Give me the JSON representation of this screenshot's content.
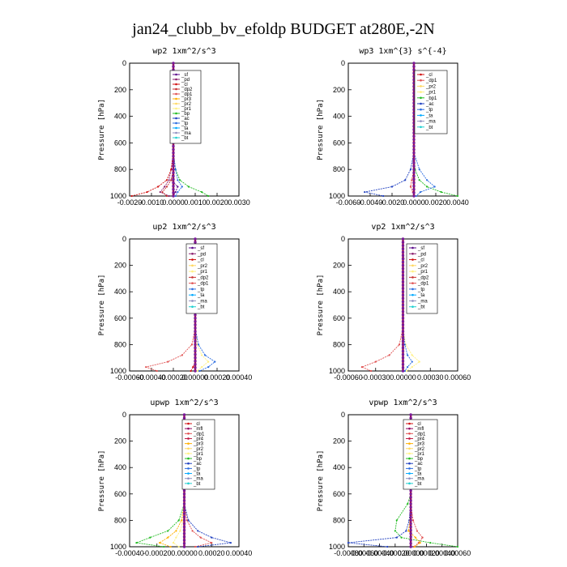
{
  "figure": {
    "title": "jan24_clubb_bv_efoldp  BUDGET at280E,-2N"
  },
  "colors": {
    "sf": "#5a0a8a",
    "pd": "#8a1e6e",
    "cl": "#d01010",
    "dp2": "#c83030",
    "dp1": "#e05050",
    "pr3": "#ffb000",
    "pr2": "#ffd860",
    "pr1": "#fff080",
    "pr4": "#c01840",
    "bp": "#22bb22",
    "ac": "#2040c0",
    "tp": "#2b6ce0",
    "ta": "#00aaff",
    "ma": "#9090c0",
    "bt": "#20d0d0",
    "mfl": "#900060"
  },
  "chart_data": [
    {
      "type": "line",
      "title": "wp2   1xm^2/s^3",
      "xlabel": "",
      "ylabel": "Pressure [hPa]",
      "xlim": [
        -0.002,
        0.003
      ],
      "ylim": [
        1000,
        0
      ],
      "xticks": [
        "-0.0020",
        "-0.0010",
        "0.0000",
        "0.0010",
        "0.0020",
        "0.0030"
      ],
      "yticks": [
        "0",
        "200",
        "400",
        "600",
        "800",
        "1000"
      ],
      "legend": [
        "_sf",
        "_pd",
        "_cl",
        "_dp2",
        "_dp1",
        "_pr3",
        "_pr2",
        "_pr1",
        "_bp",
        "_ac",
        "_tp",
        "_ta",
        "_ma",
        "_bt"
      ],
      "series": [
        {
          "name": "_sf",
          "values": [
            0,
            0,
            0,
            0,
            0,
            0,
            0,
            0,
            0,
            0,
            0,
            -0.0001,
            0.0002,
            0.0001,
            0
          ]
        },
        {
          "name": "_pd",
          "values": [
            0,
            0,
            0,
            0,
            0,
            0,
            0,
            0,
            0,
            0,
            -0.0001,
            -0.0002,
            -0.0004,
            -0.0006,
            -0.0002
          ]
        },
        {
          "name": "_cl",
          "values": [
            0,
            0,
            0,
            0,
            0,
            0,
            0,
            0,
            0,
            0,
            -0.0001,
            -0.0003,
            -0.0007,
            -0.0012,
            -0.0019
          ]
        },
        {
          "name": "_dp2",
          "values": [
            0,
            0,
            0,
            0,
            0,
            0,
            0,
            0,
            0,
            0,
            0,
            -0.0001,
            -0.0003,
            -0.0005,
            -0.0003
          ]
        },
        {
          "name": "_bp",
          "values": [
            0,
            0,
            0,
            0,
            0,
            0,
            0,
            0,
            0,
            0,
            0.0001,
            0.0003,
            0.0007,
            0.0013,
            0.0016
          ]
        },
        {
          "name": "_tp",
          "values": [
            0,
            0,
            0,
            0,
            0,
            0,
            0,
            0,
            0,
            0,
            0.0001,
            0.0002,
            0.0004,
            0.0002,
            0.0001
          ]
        }
      ],
      "levels": [
        0,
        75,
        150,
        225,
        300,
        375,
        450,
        525,
        600,
        675,
        800,
        880,
        930,
        970,
        1000
      ]
    },
    {
      "type": "line",
      "title": "wp3   1xm^{3} s^{-4}",
      "xlabel": "",
      "ylabel": "Pressure [hPa]",
      "xlim": [
        -0.006,
        0.004
      ],
      "ylim": [
        1000,
        0
      ],
      "xticks": [
        "-0.0060",
        "-0.0040",
        "-0.0020",
        "0.0000",
        "0.0020",
        "0.0040"
      ],
      "yticks": [
        "0",
        "200",
        "400",
        "600",
        "800",
        "1000"
      ],
      "legend": [
        "_cl",
        "_dp1",
        "_pr2",
        "_pr1",
        "_bp1",
        "_ac",
        "_tp",
        "_ta",
        "_ma",
        "_bt"
      ],
      "series": [
        {
          "name": "_cl",
          "values": [
            0,
            0,
            0,
            0,
            0,
            0,
            0,
            0,
            0,
            0,
            0,
            0,
            0,
            0,
            0
          ]
        },
        {
          "name": "_dp1",
          "values": [
            0,
            0,
            0,
            0,
            0,
            0,
            0,
            0,
            0,
            0,
            0,
            -0.0002,
            -0.0003,
            -0.0001,
            0
          ]
        },
        {
          "name": "_bp1",
          "values": [
            0,
            0,
            0,
            0,
            0,
            0,
            0,
            0,
            0,
            0,
            0.0001,
            0.0005,
            0.0012,
            0.0025,
            0.004
          ]
        },
        {
          "name": "_ac",
          "values": [
            0,
            0,
            0,
            0,
            0,
            0,
            0,
            0,
            0,
            0,
            -0.0003,
            -0.0008,
            -0.002,
            -0.0045,
            -0.0028
          ]
        },
        {
          "name": "_tp",
          "values": [
            0,
            0,
            0,
            0,
            0,
            0,
            0,
            0,
            0,
            0,
            0.0005,
            0.0012,
            0.0019,
            0.0006,
            0.0002
          ]
        }
      ],
      "levels": [
        0,
        75,
        150,
        225,
        300,
        375,
        450,
        525,
        600,
        675,
        800,
        880,
        930,
        970,
        1000
      ]
    },
    {
      "type": "line",
      "title": "up2   1xm^2/s^3",
      "xlabel": "",
      "ylabel": "Pressure [hPa]",
      "xlim": [
        -0.0006,
        0.0004
      ],
      "ylim": [
        1000,
        0
      ],
      "xticks": [
        "-0.00060",
        "-0.00040",
        "-0.00020",
        "0.00000",
        "0.00020",
        "0.00040"
      ],
      "yticks": [
        "0",
        "200",
        "400",
        "600",
        "800",
        "1000"
      ],
      "legend": [
        "_sf",
        "_pd",
        "_cl",
        "_pr2",
        "_pr1",
        "_dp2",
        "_dp1",
        "_tp",
        "_ta",
        "_ma",
        "_bt"
      ],
      "series": [
        {
          "name": "_sf",
          "values": [
            0,
            0,
            0,
            0,
            0,
            0,
            0,
            0,
            0,
            0,
            0,
            0,
            0,
            0,
            0
          ]
        },
        {
          "name": "_cl",
          "values": [
            0,
            0,
            0,
            0,
            0,
            0,
            0,
            0,
            0,
            0,
            0,
            0,
            0,
            -2e-05,
            -4e-05
          ]
        },
        {
          "name": "_pr1",
          "values": [
            0,
            0,
            0,
            0,
            0,
            0,
            0,
            0,
            0,
            0,
            2e-05,
            6e-05,
            0.00012,
            6e-05,
            2e-05
          ]
        },
        {
          "name": "_dp1",
          "values": [
            0,
            0,
            0,
            0,
            0,
            0,
            0,
            0,
            0,
            0,
            -3e-05,
            -0.00012,
            -0.00025,
            -0.00045,
            -0.00035
          ]
        },
        {
          "name": "_tp",
          "values": [
            0,
            0,
            0,
            0,
            0,
            0,
            0,
            0,
            0,
            0,
            3e-05,
            9e-05,
            0.00018,
            0.00012,
            4e-05
          ]
        },
        {
          "name": "_ma",
          "values": [
            0,
            1e-05,
            1e-05,
            0,
            0,
            0,
            0,
            0,
            0,
            0,
            0,
            0,
            0,
            0,
            0
          ]
        }
      ],
      "levels": [
        0,
        75,
        150,
        225,
        300,
        375,
        450,
        525,
        600,
        675,
        800,
        880,
        930,
        970,
        1000
      ]
    },
    {
      "type": "line",
      "title": "vp2   1xm^2/s^3",
      "xlabel": "",
      "ylabel": "Pressure [hPa]",
      "xlim": [
        -0.0006,
        0.0006
      ],
      "ylim": [
        1000,
        0
      ],
      "xticks": [
        "-0.00060",
        "-0.00030",
        "0.00000",
        "0.00030",
        "0.00060"
      ],
      "yticks": [
        "0",
        "200",
        "400",
        "600",
        "800",
        "1000"
      ],
      "legend": [
        "_sf",
        "_pd",
        "_cl",
        "_pr2",
        "_pr1",
        "_dp2",
        "_dp1",
        "_tp",
        "_ta",
        "_ma",
        "_bt"
      ],
      "series": [
        {
          "name": "_sf",
          "values": [
            0,
            0,
            0,
            0,
            0,
            0,
            0,
            0,
            0,
            0,
            0,
            0,
            0,
            0,
            0
          ]
        },
        {
          "name": "_pr1",
          "values": [
            0,
            0,
            0,
            0,
            0,
            0,
            0,
            0,
            0,
            0,
            3e-05,
            0.0001,
            0.00018,
            0.0001,
            4e-05
          ]
        },
        {
          "name": "_dp1",
          "values": [
            0,
            0,
            0,
            0,
            0,
            0,
            0,
            0,
            0,
            0,
            -4e-05,
            -0.00015,
            -0.0003,
            -0.00045,
            -0.00035
          ]
        },
        {
          "name": "_tp",
          "values": [
            0,
            0,
            0,
            0,
            0,
            0,
            0,
            0,
            0,
            0,
            2e-05,
            5e-05,
            0.0001,
            5e-05,
            2e-05
          ]
        },
        {
          "name": "_ma",
          "values": [
            0,
            0,
            1e-05,
            0,
            0,
            0,
            0,
            0,
            0,
            0,
            0,
            0,
            0,
            0,
            0
          ]
        }
      ],
      "levels": [
        0,
        75,
        150,
        225,
        300,
        375,
        450,
        525,
        600,
        675,
        800,
        880,
        930,
        970,
        1000
      ]
    },
    {
      "type": "line",
      "title": "upwp   1xm^2/s^3",
      "xlabel": "",
      "ylabel": "Pressure [hPa]",
      "xlim": [
        -0.0004,
        0.0004
      ],
      "ylim": [
        1000,
        0
      ],
      "xticks": [
        "-0.00040",
        "-0.00020",
        "0.00000",
        "0.00020",
        "0.00040"
      ],
      "yticks": [
        "0",
        "200",
        "400",
        "600",
        "800",
        "1000"
      ],
      "legend": [
        "_cl",
        "_mfl",
        "_dp1",
        "_pr4",
        "_pr3",
        "_pr2",
        "_pr1",
        "_bp",
        "_ac",
        "_tp",
        "_ta",
        "_ma",
        "_bt"
      ],
      "series": [
        {
          "name": "_mfl",
          "values": [
            0,
            0,
            0,
            0,
            0,
            0,
            0,
            0,
            0,
            0,
            0,
            0,
            0,
            0,
            0
          ]
        },
        {
          "name": "_dp1",
          "values": [
            0,
            0,
            0,
            0,
            0,
            0,
            0,
            0,
            0,
            0,
            2e-05,
            6e-05,
            0.00012,
            0.0002,
            8e-05
          ]
        },
        {
          "name": "_pr3",
          "values": [
            0,
            0,
            0,
            0,
            0,
            0,
            0,
            0,
            0,
            0,
            -2e-05,
            -6e-05,
            -0.00012,
            -0.00018,
            -0.0001
          ]
        },
        {
          "name": "_bp",
          "values": [
            0,
            0,
            0,
            0,
            0,
            0,
            0,
            0,
            0,
            0,
            -4e-05,
            -0.00012,
            -0.00025,
            -0.00035,
            -0.00015
          ]
        },
        {
          "name": "_ac",
          "values": [
            0,
            0,
            0,
            0,
            0,
            0,
            0,
            0,
            0,
            0,
            3e-05,
            0.0001,
            0.0002,
            0.00034,
            0.0001
          ]
        },
        {
          "name": "_pr1",
          "values": [
            0,
            0,
            0,
            0,
            0,
            0,
            0,
            0,
            0,
            0,
            -1e-05,
            -3e-05,
            -6e-05,
            -8e-05,
            -4e-05
          ]
        }
      ],
      "levels": [
        0,
        75,
        150,
        225,
        300,
        375,
        450,
        525,
        600,
        675,
        800,
        880,
        930,
        970,
        1000
      ]
    },
    {
      "type": "line",
      "title": "vpwp   1xm^2/s^3",
      "xlabel": "",
      "ylabel": "Pressure [hPa]",
      "xlim": [
        -0.0008,
        0.0006
      ],
      "ylim": [
        1000,
        0
      ],
      "xticks": [
        "-0.00080",
        "-0.00060",
        "-0.00040",
        "-0.00020",
        "0.00000",
        "0.00020",
        "0.00040",
        "0.00060"
      ],
      "yticks": [
        "0",
        "200",
        "400",
        "600",
        "800",
        "1000"
      ],
      "legend": [
        "_cl",
        "_mfl",
        "_dp1",
        "_pr4",
        "_pr3",
        "_pr2",
        "_pr1",
        "_bp",
        "_ac",
        "_tp",
        "_ta",
        "_ma",
        "_bt"
      ],
      "series": [
        {
          "name": "_mfl",
          "values": [
            0,
            0,
            0,
            0,
            0,
            0,
            0,
            0,
            0,
            0,
            0,
            0,
            0,
            0,
            0
          ]
        },
        {
          "name": "_bp",
          "values": [
            0,
            0,
            0,
            0,
            0,
            0,
            0,
            0,
            0,
            -4e-05,
            -0.00018,
            -0.0002,
            -0.00012,
            0.00025,
            0.0006
          ]
        },
        {
          "name": "_ac",
          "values": [
            0,
            0,
            0,
            0,
            0,
            0,
            0,
            0,
            0,
            0,
            -2e-05,
            -6e-05,
            -0.00018,
            -0.0008,
            -0.0003
          ]
        },
        {
          "name": "_dp1",
          "values": [
            0,
            0,
            0,
            0,
            0,
            0,
            0,
            0,
            0,
            0,
            3e-05,
            8e-05,
            0.00015,
            0.0001,
            4e-05
          ]
        },
        {
          "name": "_pr3",
          "values": [
            0,
            0,
            0,
            0,
            0,
            0,
            0,
            0,
            0,
            0,
            -1e-05,
            -3e-05,
            6e-05,
            0.00012,
            5e-05
          ]
        },
        {
          "name": "_ma",
          "values": [
            0,
            0,
            0,
            0,
            0,
            -3e-05,
            0,
            0,
            0,
            0,
            0,
            0,
            0,
            0,
            0
          ]
        }
      ],
      "levels": [
        0,
        75,
        150,
        225,
        300,
        375,
        450,
        525,
        600,
        675,
        800,
        880,
        930,
        970,
        1000
      ]
    }
  ]
}
